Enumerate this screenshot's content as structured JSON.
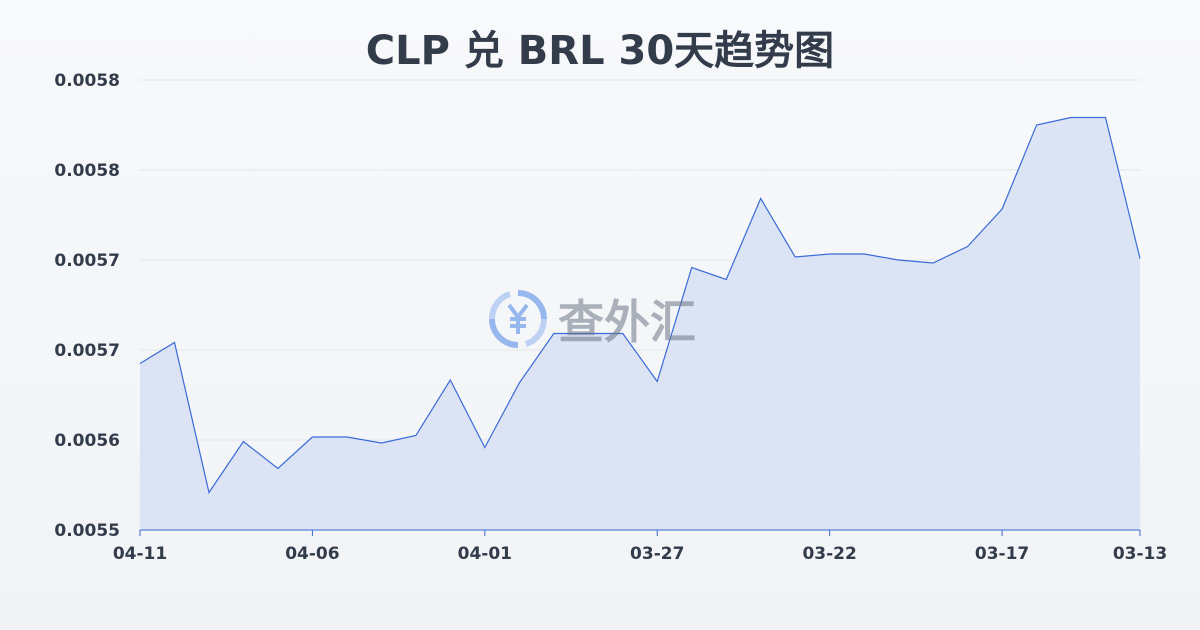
{
  "chart_data": {
    "type": "area",
    "title": "CLP 兑 BRL 30天趋势图",
    "xlabel": "",
    "ylabel": "",
    "x": [
      "04-11",
      "04-10",
      "04-09",
      "04-08",
      "04-07",
      "04-06",
      "04-05",
      "04-04",
      "04-03",
      "04-02",
      "04-01",
      "03-31",
      "03-30",
      "03-29",
      "03-28",
      "03-27",
      "03-26",
      "03-25",
      "03-24",
      "03-23",
      "03-22",
      "03-21",
      "03-20",
      "03-19",
      "03-18",
      "03-17",
      "03-16",
      "03-15",
      "03-14",
      "03-13"
    ],
    "values": [
      0.005651,
      0.005665,
      0.005565,
      0.005599,
      0.005581,
      0.005602,
      0.005602,
      0.005598,
      0.005603,
      0.00564,
      0.005595,
      0.005638,
      0.005671,
      0.005671,
      0.005671,
      0.005639,
      0.005715,
      0.005707,
      0.005761,
      0.005722,
      0.005724,
      0.005724,
      0.00572,
      0.005718,
      0.005729,
      0.005754,
      0.00581,
      0.005815,
      0.005815,
      0.005721
    ],
    "x_tick_labels": [
      "04-11",
      "04-06",
      "04-01",
      "03-27",
      "03-22",
      "03-17",
      "03-13"
    ],
    "y_tick_labels": [
      "0.0055",
      "0.0056",
      "0.0057",
      "0.0057",
      "0.0058",
      "0.0058"
    ],
    "ylim": [
      0.00554,
      0.00584
    ],
    "grid": true,
    "colors": {
      "line": "#3a6bd6",
      "fill": "#d4def4",
      "grid": "#e3e6eb"
    }
  },
  "watermark": {
    "text": "查外汇",
    "icon": "yen-exchange-icon"
  }
}
